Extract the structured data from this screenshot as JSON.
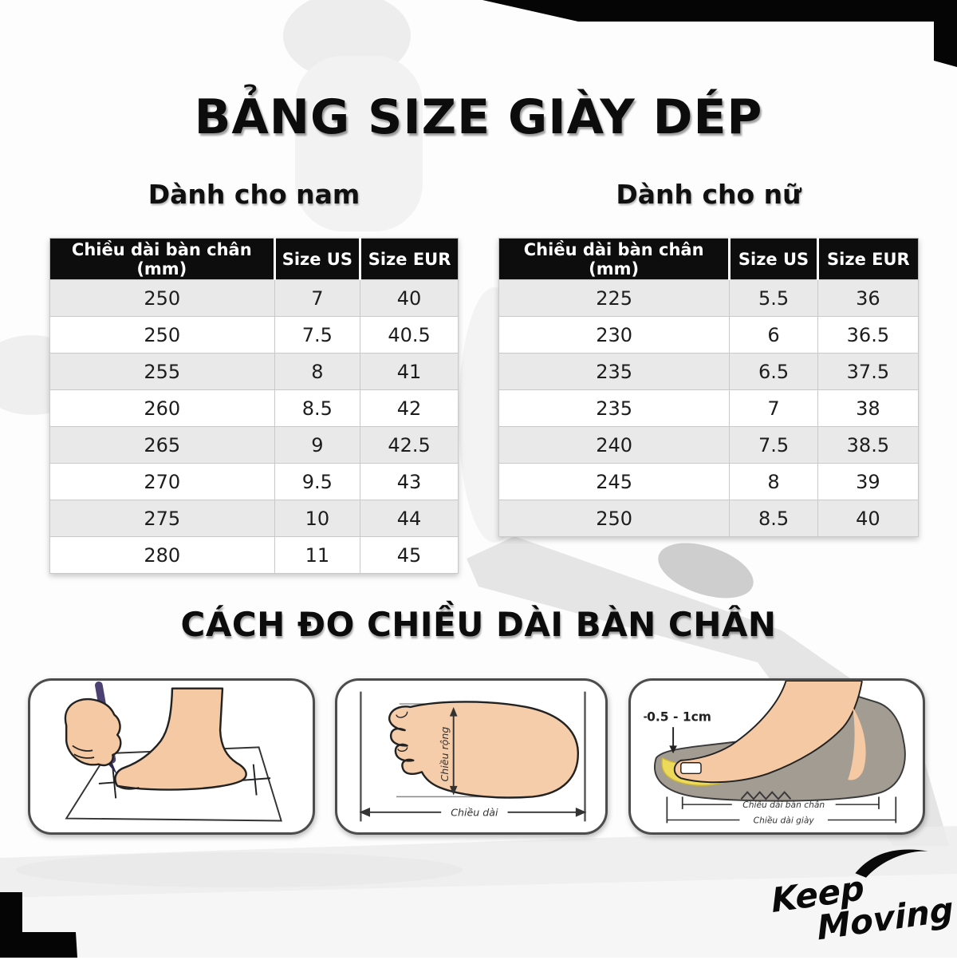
{
  "page": {
    "title": "BẢNG SIZE GIÀY DÉP",
    "measure_heading": "CÁCH ĐO CHIỀU DÀI BÀN CHÂN"
  },
  "tables": {
    "men": {
      "heading": "Dành cho nam",
      "columns": [
        "Chiều dài bàn chân (mm)",
        "Size US",
        "Size EUR"
      ],
      "rows": [
        [
          "250",
          "7",
          "40"
        ],
        [
          "250",
          "7.5",
          "40.5"
        ],
        [
          "255",
          "8",
          "41"
        ],
        [
          "260",
          "8.5",
          "42"
        ],
        [
          "265",
          "9",
          "42.5"
        ],
        [
          "270",
          "9.5",
          "43"
        ],
        [
          "275",
          "10",
          "44"
        ],
        [
          "280",
          "11",
          "45"
        ]
      ]
    },
    "women": {
      "heading": "Dành cho nữ",
      "columns": [
        "Chiều dài bàn chân (mm)",
        "Size US",
        "Size EUR"
      ],
      "rows": [
        [
          "225",
          "5.5",
          "36"
        ],
        [
          "230",
          "6",
          "36.5"
        ],
        [
          "235",
          "6.5",
          "37.5"
        ],
        [
          "235",
          "7",
          "38"
        ],
        [
          "240",
          "7.5",
          "38.5"
        ],
        [
          "245",
          "8",
          "39"
        ],
        [
          "250",
          "8.5",
          "40"
        ]
      ]
    }
  },
  "panels": {
    "width_label": "Chiều rộng",
    "length_label": "Chiều dài",
    "toe_gap_label": "0.5 - 1cm",
    "foot_length_label": "Chiều dài bàn chân",
    "shoe_length_label": "Chiều dài giày"
  },
  "logo": {
    "line1": "Keep",
    "line2": "Moving"
  },
  "colors": {
    "header_bg": "#0d0d0d",
    "header_text": "#ffffff",
    "row_alt": "#e9e9e9",
    "skin": "#f5c9a3",
    "insole_yellow": "#eeda5a",
    "sole_gray": "#a29c93",
    "pen_purple": "#4b4273"
  }
}
